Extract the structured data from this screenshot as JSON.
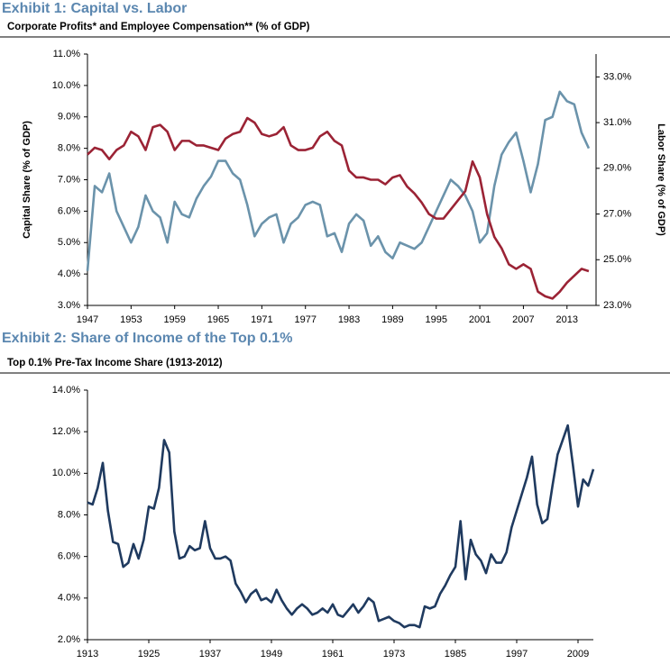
{
  "chart_data": [
    {
      "type": "line",
      "heading": "Exhibit 1: Capital vs. Labor",
      "title": "Corporate Profits* and Employee Compensation** (% of GDP)",
      "ylabel": "Capital Share (% of GDP)",
      "y2label": "Labor Share (% of GDP)",
      "x": [
        1947,
        1948,
        1949,
        1950,
        1951,
        1952,
        1953,
        1954,
        1955,
        1956,
        1957,
        1958,
        1959,
        1960,
        1961,
        1962,
        1963,
        1964,
        1965,
        1966,
        1967,
        1968,
        1969,
        1970,
        1971,
        1972,
        1973,
        1974,
        1975,
        1976,
        1977,
        1978,
        1979,
        1980,
        1981,
        1982,
        1983,
        1984,
        1985,
        1986,
        1987,
        1988,
        1989,
        1990,
        1991,
        1992,
        1993,
        1994,
        1995,
        1996,
        1997,
        1998,
        1999,
        2000,
        2001,
        2002,
        2003,
        2004,
        2005,
        2006,
        2007,
        2008,
        2009,
        2010,
        2011,
        2012,
        2013,
        2014,
        2015,
        2016
      ],
      "series": [
        {
          "name": "Capital Share",
          "color": "#6b93ab",
          "axis": "y",
          "values": [
            4.1,
            6.8,
            6.6,
            7.2,
            6.0,
            5.5,
            5.0,
            5.5,
            6.5,
            6.0,
            5.8,
            5.0,
            6.3,
            5.9,
            5.8,
            6.4,
            6.8,
            7.1,
            7.6,
            7.6,
            7.2,
            7.0,
            6.2,
            5.2,
            5.6,
            5.8,
            5.9,
            5.0,
            5.6,
            5.8,
            6.2,
            6.3,
            6.2,
            5.2,
            5.3,
            4.7,
            5.6,
            5.9,
            5.7,
            4.9,
            5.2,
            4.7,
            4.5,
            5.0,
            4.9,
            4.8,
            5.0,
            5.5,
            6.0,
            6.5,
            7.0,
            6.8,
            6.5,
            6.0,
            5.0,
            5.3,
            6.8,
            7.8,
            8.2,
            8.5,
            7.6,
            6.6,
            7.5,
            8.9,
            9.0,
            9.8,
            9.5,
            9.4,
            8.5,
            8.0
          ]
        },
        {
          "name": "Labor Share",
          "color": "#9b2335",
          "axis": "y2",
          "values": [
            29.6,
            29.9,
            29.8,
            29.4,
            29.8,
            30.0,
            30.6,
            30.4,
            29.8,
            30.8,
            30.9,
            30.6,
            29.8,
            30.2,
            30.2,
            30.0,
            30.0,
            29.9,
            29.8,
            30.3,
            30.5,
            30.6,
            31.2,
            31.0,
            30.5,
            30.4,
            30.5,
            30.8,
            30.0,
            29.8,
            29.8,
            29.9,
            30.4,
            30.6,
            30.2,
            30.0,
            28.9,
            28.6,
            28.6,
            28.5,
            28.5,
            28.3,
            28.6,
            28.7,
            28.2,
            27.9,
            27.5,
            27.0,
            26.8,
            26.8,
            27.2,
            27.6,
            28.0,
            29.3,
            28.6,
            27.0,
            26.0,
            25.5,
            24.8,
            24.6,
            24.8,
            24.6,
            23.6,
            23.4,
            23.3,
            23.6,
            24.0,
            24.3,
            24.6,
            24.5
          ]
        }
      ],
      "xlim": [
        1947,
        2017
      ],
      "xticks": [
        1947,
        1953,
        1959,
        1965,
        1971,
        1977,
        1983,
        1989,
        1995,
        2001,
        2007,
        2013
      ],
      "ylim": [
        3,
        11
      ],
      "yticks": [
        {
          "value": 3,
          "label": "3.0%"
        },
        {
          "value": 4,
          "label": "4.0%"
        },
        {
          "value": 5,
          "label": "5.0%"
        },
        {
          "value": 6,
          "label": "6.0%"
        },
        {
          "value": 7,
          "label": "7.0%"
        },
        {
          "value": 8,
          "label": "8.0%"
        },
        {
          "value": 9,
          "label": "9.0%"
        },
        {
          "value": 10,
          "label": "10.0%"
        },
        {
          "value": 11,
          "label": "11.0%"
        }
      ],
      "y2lim": [
        23,
        34
      ],
      "y2ticks": [
        {
          "value": 23,
          "label": "23.0%"
        },
        {
          "value": 25,
          "label": "25.0%"
        },
        {
          "value": 27,
          "label": "27.0%"
        },
        {
          "value": 29,
          "label": "29.0%"
        },
        {
          "value": 31,
          "label": "31.0%"
        },
        {
          "value": 33,
          "label": "33.0%"
        }
      ],
      "grid": false
    },
    {
      "type": "line",
      "heading": "Exhibit 2: Share of Income of the Top 0.1%",
      "title": "Top 0.1% Pre-Tax Income Share (1913-2012)",
      "x": [
        1913,
        1914,
        1915,
        1916,
        1917,
        1918,
        1919,
        1920,
        1921,
        1922,
        1923,
        1924,
        1925,
        1926,
        1927,
        1928,
        1929,
        1930,
        1931,
        1932,
        1933,
        1934,
        1935,
        1936,
        1937,
        1938,
        1939,
        1940,
        1941,
        1942,
        1943,
        1944,
        1945,
        1946,
        1947,
        1948,
        1949,
        1950,
        1951,
        1952,
        1953,
        1954,
        1955,
        1956,
        1957,
        1958,
        1959,
        1960,
        1961,
        1962,
        1963,
        1964,
        1965,
        1966,
        1967,
        1968,
        1969,
        1970,
        1971,
        1972,
        1973,
        1974,
        1975,
        1976,
        1977,
        1978,
        1979,
        1980,
        1981,
        1982,
        1983,
        1984,
        1985,
        1986,
        1987,
        1988,
        1989,
        1990,
        1991,
        1992,
        1993,
        1994,
        1995,
        1996,
        1997,
        1998,
        1999,
        2000,
        2001,
        2002,
        2003,
        2004,
        2005,
        2006,
        2007,
        2008,
        2009,
        2010,
        2011,
        2012
      ],
      "series": [
        {
          "name": "Top 0.1% Share",
          "color": "#1f3a5f",
          "axis": "y",
          "values": [
            8.6,
            8.5,
            9.3,
            10.5,
            8.2,
            6.7,
            6.6,
            5.5,
            5.7,
            6.6,
            5.9,
            6.8,
            8.4,
            8.3,
            9.3,
            11.6,
            11.0,
            7.2,
            5.9,
            6.0,
            6.5,
            6.3,
            6.4,
            7.7,
            6.4,
            5.9,
            5.9,
            6.0,
            5.8,
            4.7,
            4.3,
            3.8,
            4.2,
            4.4,
            3.9,
            4.0,
            3.8,
            4.4,
            3.9,
            3.5,
            3.2,
            3.5,
            3.7,
            3.5,
            3.2,
            3.3,
            3.5,
            3.3,
            3.7,
            3.2,
            3.1,
            3.4,
            3.7,
            3.3,
            3.6,
            4.0,
            3.8,
            2.9,
            3.0,
            3.1,
            2.9,
            2.8,
            2.6,
            2.7,
            2.7,
            2.6,
            3.6,
            3.5,
            3.6,
            4.2,
            4.6,
            5.1,
            5.5,
            7.7,
            4.9,
            6.8,
            6.1,
            5.8,
            5.2,
            6.1,
            5.7,
            5.7,
            6.2,
            7.4,
            8.2,
            9.0,
            9.8,
            10.8,
            8.5,
            7.6,
            7.8,
            9.4,
            10.9,
            11.6,
            12.3,
            10.4,
            8.4,
            9.7,
            9.4,
            10.2
          ]
        }
      ],
      "xlim": [
        1913,
        2012
      ],
      "xticks": [
        1913,
        1925,
        1937,
        1949,
        1961,
        1973,
        1985,
        1997,
        2009
      ],
      "ylim": [
        2,
        14
      ],
      "yticks": [
        {
          "value": 2,
          "label": "2.0%"
        },
        {
          "value": 4,
          "label": "4.0%"
        },
        {
          "value": 6,
          "label": "6.0%"
        },
        {
          "value": 8,
          "label": "8.0%"
        },
        {
          "value": 10,
          "label": "10.0%"
        },
        {
          "value": 12,
          "label": "12.0%"
        },
        {
          "value": 14,
          "label": "14.0%"
        }
      ],
      "grid": false
    }
  ]
}
